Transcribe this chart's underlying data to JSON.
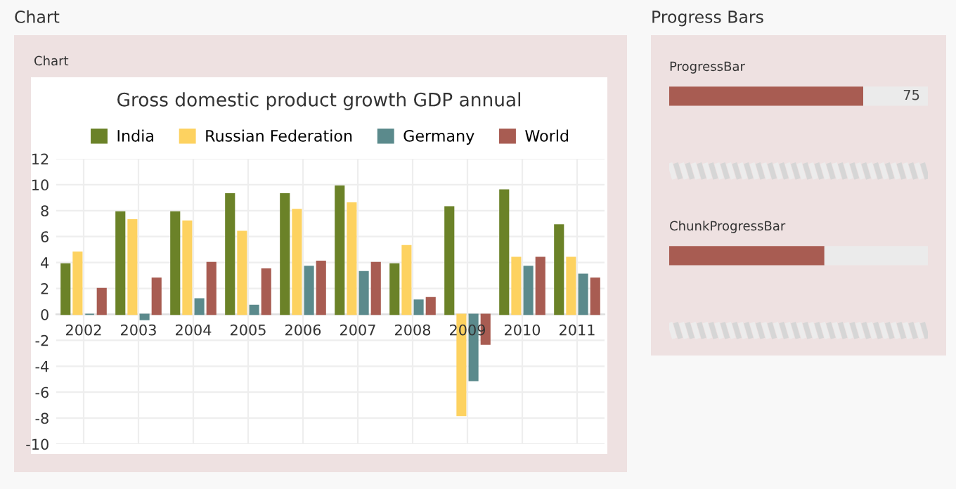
{
  "chart_data": [
    {
      "type": "bar",
      "title": "Gross domestic product growth GDP annual",
      "annotations": [
        "Chart",
        "Chart"
      ],
      "categories": [
        "2002",
        "2003",
        "2004",
        "2005",
        "2006",
        "2007",
        "2008",
        "2009",
        "2010",
        "2011"
      ],
      "series": [
        {
          "name": "India",
          "color": "#6b8228",
          "values": [
            3.9,
            7.9,
            7.9,
            9.3,
            9.3,
            9.9,
            3.9,
            8.3,
            9.6,
            6.9
          ]
        },
        {
          "name": "Russian Federation",
          "color": "#fdd260",
          "values": [
            4.8,
            7.3,
            7.2,
            6.4,
            8.1,
            8.6,
            5.3,
            -7.8,
            4.4,
            4.4
          ]
        },
        {
          "name": "Germany",
          "color": "#5b8a8c",
          "values": [
            0.0,
            -0.4,
            1.2,
            0.7,
            3.7,
            3.3,
            1.1,
            -5.1,
            3.7,
            3.1
          ]
        },
        {
          "name": "World",
          "color": "#a85c52",
          "values": [
            2.0,
            2.8,
            4.0,
            3.5,
            4.1,
            4.0,
            1.3,
            -2.3,
            4.4,
            2.8
          ]
        }
      ],
      "ylim": [
        -10,
        12
      ],
      "yticks": [
        -10,
        -8,
        -6,
        -4,
        -2,
        0,
        2,
        4,
        6,
        8,
        10,
        12
      ],
      "grid": true,
      "legend": "top"
    },
    {
      "type": "bar",
      "title": "Progress Bars",
      "orientation": "horizontal",
      "stacked": true,
      "xlim": [
        0,
        100
      ],
      "categories": [
        "ProgressBar",
        "ChunkProgressBar"
      ],
      "series": [
        {
          "color": "#a85c52",
          "values": [
            75,
            60
          ],
          "value_labels": [
            "75",
            null
          ]
        },
        {
          "color": "#ebebeb",
          "values": [
            25,
            40
          ]
        }
      ]
    }
  ]
}
